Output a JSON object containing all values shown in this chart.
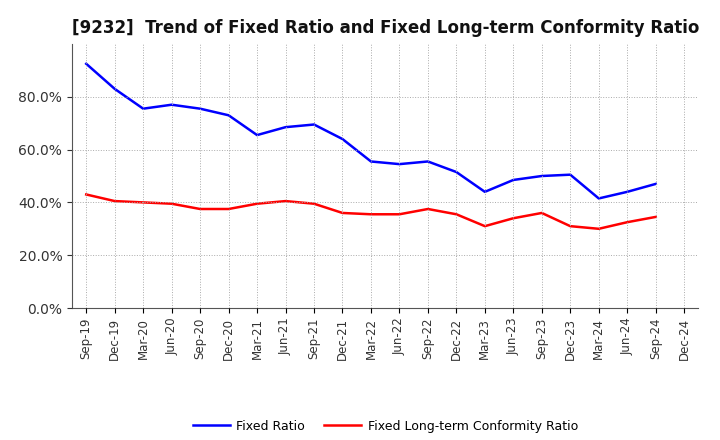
{
  "title": "[9232]  Trend of Fixed Ratio and Fixed Long-term Conformity Ratio",
  "labels": [
    "Sep-19",
    "Dec-19",
    "Mar-20",
    "Jun-20",
    "Sep-20",
    "Dec-20",
    "Mar-21",
    "Jun-21",
    "Sep-21",
    "Dec-21",
    "Mar-22",
    "Jun-22",
    "Sep-22",
    "Dec-22",
    "Mar-23",
    "Jun-23",
    "Sep-23",
    "Dec-23",
    "Mar-24",
    "Jun-24",
    "Sep-24",
    "Dec-24"
  ],
  "fixed_ratio": [
    0.925,
    0.83,
    0.755,
    0.77,
    0.755,
    0.73,
    0.655,
    0.685,
    0.695,
    0.64,
    0.555,
    0.545,
    0.555,
    0.515,
    0.44,
    0.485,
    0.5,
    0.505,
    0.415,
    0.44,
    0.47,
    null
  ],
  "fixed_lt_ratio": [
    0.43,
    0.405,
    0.4,
    0.395,
    0.375,
    0.375,
    0.395,
    0.405,
    0.395,
    0.36,
    0.355,
    0.355,
    0.375,
    0.355,
    0.31,
    0.34,
    0.36,
    0.31,
    0.3,
    0.325,
    0.345,
    null
  ],
  "fixed_ratio_color": "#0000FF",
  "fixed_lt_ratio_color": "#FF0000",
  "ylim": [
    0.0,
    1.0
  ],
  "yticks": [
    0.0,
    0.2,
    0.4,
    0.6,
    0.8
  ],
  "background_color": "#FFFFFF",
  "grid_color": "#AAAAAA",
  "title_fontsize": 12,
  "tick_fontsize": 8.5,
  "ytick_fontsize": 10,
  "legend_labels": [
    "Fixed Ratio",
    "Fixed Long-term Conformity Ratio"
  ],
  "legend_fontsize": 9,
  "linewidth": 1.8
}
